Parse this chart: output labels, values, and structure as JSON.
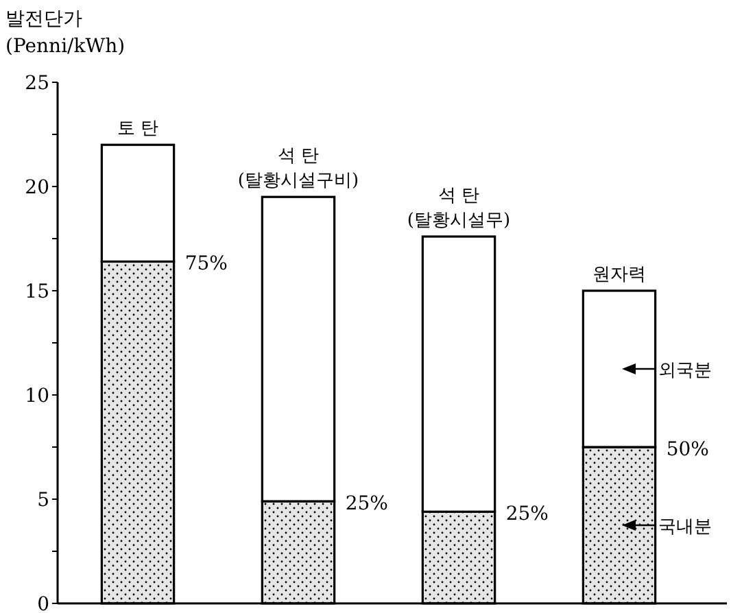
{
  "chart_data": {
    "type": "bar",
    "stacked": true,
    "ylabel": "발전단가\n(Penni/kWh)",
    "categories": [
      "토  탄",
      "석  탄\n(탈황시설구비)",
      "석  탄\n(탈황시설무)",
      "원자력"
    ],
    "series": [
      {
        "name": "국내분",
        "color": "#e6e6e6",
        "values": [
          16.4,
          4.9,
          4.4,
          7.5
        ]
      },
      {
        "name": "외국분",
        "color": "#ffffff",
        "values": [
          5.6,
          14.6,
          13.2,
          7.5
        ]
      }
    ],
    "ylim": [
      0,
      25
    ],
    "yticks": [
      0,
      {
        "value": 2.5,
        "label": null
      },
      5,
      {
        "value": 7.5,
        "label": null
      },
      10,
      {
        "value": 12.5,
        "label": null
      },
      15,
      {
        "value": 17.5,
        "label": null
      },
      20,
      {
        "value": 22.5,
        "label": null
      },
      25
    ],
    "annotations": [
      {
        "text": "75%",
        "x": "토  탄",
        "y": 16.4
      },
      {
        "text": "25%",
        "x": "석  탄\n(탈황시설구비)",
        "y": 4.9
      },
      {
        "text": "25%",
        "x": "석  탄\n(탈황시설무)",
        "y": 4.4
      },
      {
        "text": "50%",
        "x": "원자력",
        "y": 7.5
      }
    ],
    "grid": false,
    "legend": "right"
  }
}
